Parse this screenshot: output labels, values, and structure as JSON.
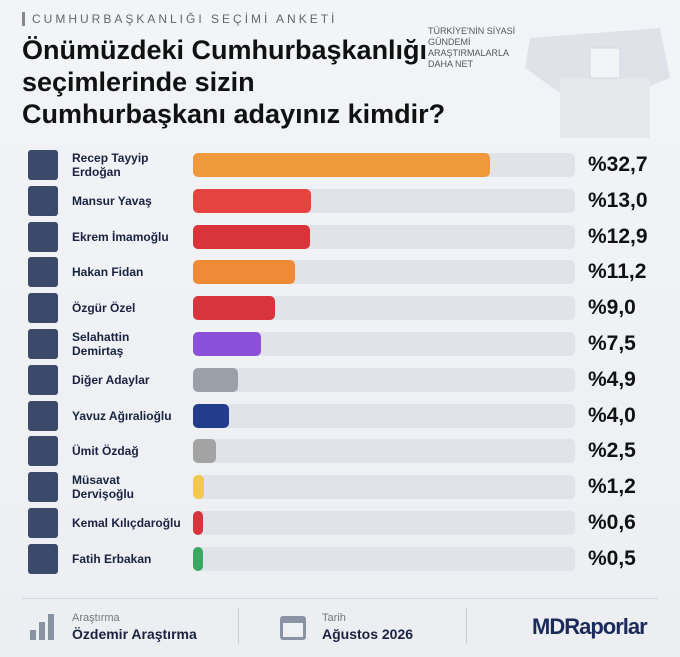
{
  "chart_data": {
    "type": "hbar",
    "header": "CUMHURBAŞKANLIĞI SEÇİMİ ANKETİ",
    "title": "Önümüzdeki Cumhurbaşkanlığı seçimlerinde sizin Cumhurbaşkanı adayınız kimdir?",
    "note": "TÜRKİYE'NİN SİYASİ GÜNDEMİ ARAŞTIRMALARLA DAHA NET",
    "categories": [
      "Recep Tayyip Erdoğan",
      "Mansur Yavaş",
      "Ekrem İmamoğlu",
      "Hakan Fidan",
      "Özgür Özel",
      "Selahattin Demirtaş",
      "Diğer Adaylar",
      "Yavuz Ağıralioğlu",
      "Ümit Özdağ",
      "Müsavat Dervişoğlu",
      "Kemal Kılıçdaroğlu",
      "Fatih Erbakan"
    ],
    "values": [
      32.7,
      13.0,
      12.9,
      11.2,
      9.0,
      7.5,
      4.9,
      4.0,
      2.5,
      1.2,
      0.6,
      0.5
    ],
    "value_labels": [
      "%32,7",
      "%13,0",
      "%12,9",
      "%11,2",
      "%9,0",
      "%7,5",
      "%4,9",
      "%4,0",
      "%2,5",
      "%1,2",
      "%0,6",
      "%0,5"
    ],
    "colors": [
      "#f0983c",
      "#e5443f",
      "#d9343a",
      "#ef8a36",
      "#d8343d",
      "#8b50d8",
      "#9aa0a8",
      "#233c8c",
      "#a3a3a3",
      "#f2c94c",
      "#d8343d",
      "#3aa860"
    ],
    "xlim": [
      0,
      42
    ],
    "footer": {
      "source_label": "Araştırma",
      "source": "Özdemir Araştırma",
      "date_label": "Tarih",
      "date": "Ağustos 2026",
      "brand": "MDRaporlar"
    }
  }
}
